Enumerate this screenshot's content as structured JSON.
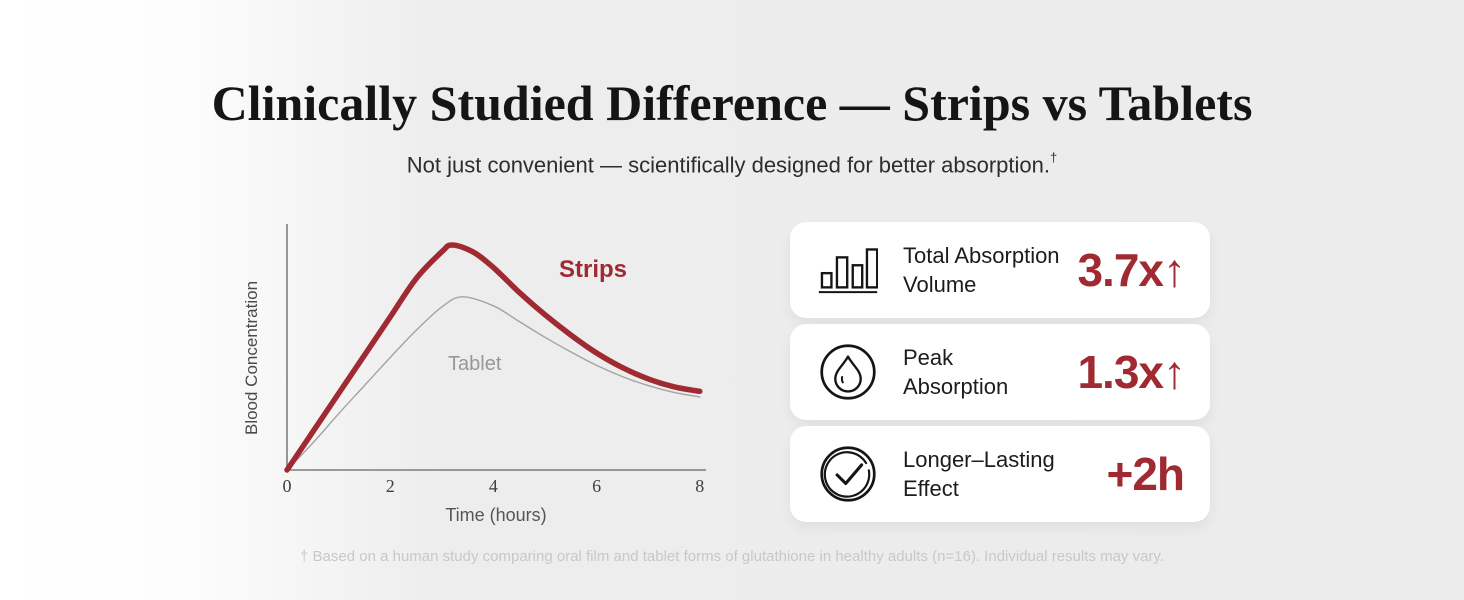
{
  "page": {
    "title": "Clinically Studied Difference — Strips vs Tablets",
    "subtitle": "Not just convenient — scientifically designed for better absorption.",
    "subtitle_dagger": "†",
    "footnote": "† Based on a human study comparing oral film and tablet forms of glutathione in healthy adults (n=16). Individual results may vary."
  },
  "colors": {
    "accent_red": "#a02a32",
    "tablet_gray": "#a3a3a3",
    "axis_gray": "#7d7d7d",
    "card_bg": "#ffffff",
    "background_left": "#ffffff",
    "background_right": "#ececec",
    "footnote_gray": "#c8c8c8"
  },
  "chart_data": {
    "type": "line",
    "title": "",
    "xlabel": "Time (hours)",
    "ylabel": "Blood Concentration",
    "x_ticks": [
      0,
      2,
      4,
      6,
      8
    ],
    "xlim": [
      0,
      8
    ],
    "ylim": [
      0,
      1.1
    ],
    "grid": false,
    "legend_position": "inline-labels",
    "series": [
      {
        "name": "Strips",
        "color": "#a02a32",
        "stroke_width": 5.5,
        "x": [
          0,
          0.5,
          1,
          1.5,
          2,
          2.5,
          3,
          3.2,
          3.6,
          4,
          4.5,
          5,
          5.5,
          6,
          6.5,
          7,
          7.5,
          8
        ],
        "y": [
          0,
          0.17,
          0.34,
          0.51,
          0.68,
          0.85,
          0.97,
          1.0,
          0.97,
          0.9,
          0.79,
          0.69,
          0.6,
          0.52,
          0.455,
          0.405,
          0.37,
          0.35
        ]
      },
      {
        "name": "Tablet",
        "color": "#a3a3a3",
        "stroke_width": 1.4,
        "x": [
          0,
          0.5,
          1,
          1.5,
          2,
          2.5,
          3,
          3.4,
          4,
          4.5,
          5,
          5.5,
          6,
          6.5,
          7,
          7.5,
          8
        ],
        "y": [
          0,
          0.12,
          0.25,
          0.375,
          0.5,
          0.62,
          0.725,
          0.77,
          0.73,
          0.66,
          0.59,
          0.525,
          0.465,
          0.415,
          0.375,
          0.345,
          0.325
        ]
      }
    ]
  },
  "stats": [
    {
      "icon": "bar-chart-icon",
      "lines": [
        "Total Absorption",
        "Volume"
      ],
      "value": "3.7x",
      "arrow": "↑"
    },
    {
      "icon": "droplet-icon",
      "lines": [
        "Peak",
        "Absorption"
      ],
      "value": "1.3x",
      "arrow": "↑"
    },
    {
      "icon": "check-circle-icon",
      "lines": [
        "Longer–Lasting",
        "Effect"
      ],
      "value": "+2h",
      "arrow": ""
    }
  ]
}
